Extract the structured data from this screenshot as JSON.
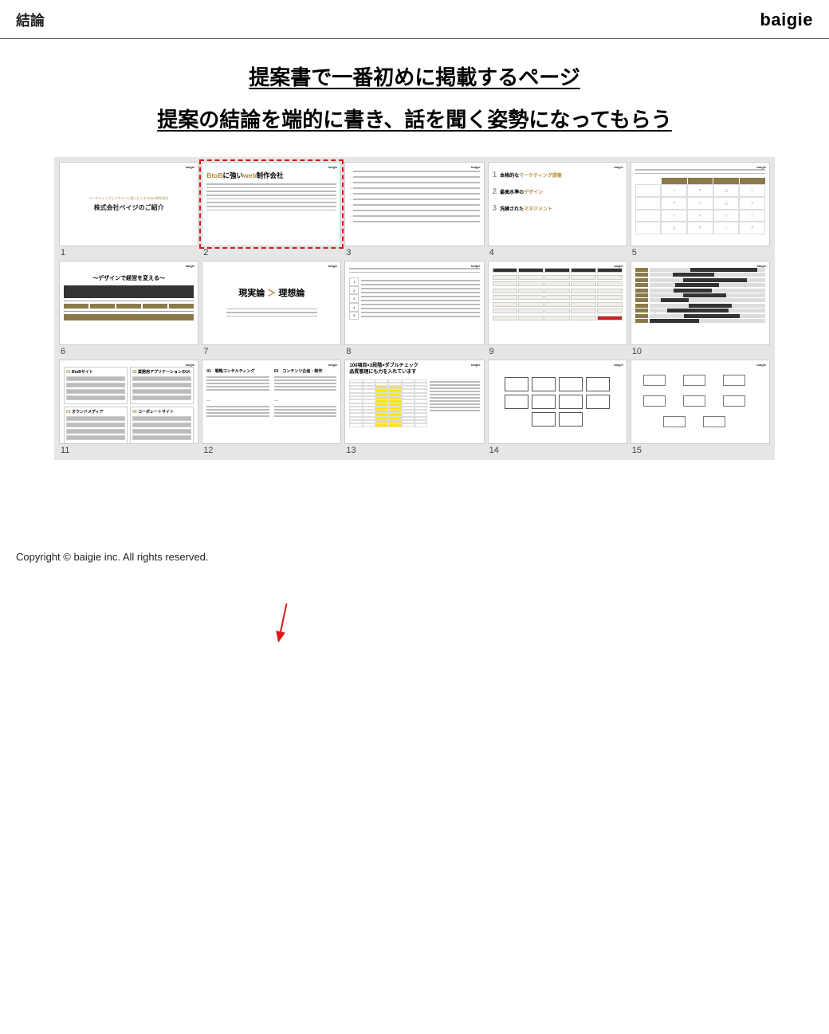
{
  "header": {
    "title": "結論",
    "logo": "baigie"
  },
  "headline1": "提案書で一番初めに掲載するページ",
  "headline2": "提案の結論を端的に書き、話を聞く姿勢になってもらう",
  "highlight": {
    "target_slide_index": 1,
    "border_color": "#d91818",
    "border_style": "dashed"
  },
  "arrow": {
    "color": "#d91818",
    "from": "headline",
    "to_slide_index": 1
  },
  "grid": {
    "background": "#e6e6e6",
    "columns": 5,
    "rows": 3,
    "thumb_bg": "#ffffff"
  },
  "slides": [
    {
      "num": "1",
      "type": "title",
      "subtitle": "マーケティングとデザインに強いビジネスWeb制作会社",
      "title": "株式会社ベイジのご紹介"
    },
    {
      "num": "2",
      "type": "conclusion",
      "title_pre": "BtoB",
      "title_mid": "に強い",
      "title_post": "web制作会社",
      "bullet_count": 8
    },
    {
      "num": "3",
      "type": "list",
      "row_count": 10
    },
    {
      "num": "4",
      "type": "threepoints",
      "items": [
        {
          "n": "1",
          "label_a": "本格的な",
          "label_b": "マーケティング提案"
        },
        {
          "n": "2",
          "label_a": "最高水準の",
          "label_b": "デザイン"
        },
        {
          "n": "3",
          "label_a": "洗練された",
          "label_b": "マネジメント"
        }
      ]
    },
    {
      "num": "5",
      "type": "matrix",
      "cols": 5,
      "rows": 4,
      "marks": [
        [
          "",
          "○",
          "×",
          "△",
          "○"
        ],
        [
          "",
          "×",
          "○",
          "△",
          "×"
        ],
        [
          "",
          "○",
          "×",
          "○",
          "○"
        ],
        [
          "",
          "△",
          "×",
          "○",
          "×"
        ]
      ]
    },
    {
      "num": "6",
      "type": "design",
      "title": "～デザインで経営を変える～"
    },
    {
      "num": "7",
      "type": "vs",
      "left": "現実論",
      "gt": "＞",
      "right": "理想論"
    },
    {
      "num": "8",
      "type": "numbered_list",
      "count": 5
    },
    {
      "num": "9",
      "type": "button_grid"
    },
    {
      "num": "10",
      "type": "gantt",
      "row_count": 11
    },
    {
      "num": "11",
      "type": "quadrant",
      "cells": [
        {
          "h_a": "01",
          "h_b": "BtoBサイト"
        },
        {
          "h_a": "02",
          "h_b": "業務用アプリケーションのUI"
        },
        {
          "h_a": "03",
          "h_b": "オウンドメディア"
        },
        {
          "h_a": "04",
          "h_b": "コーポレートサイト"
        }
      ]
    },
    {
      "num": "12",
      "type": "twocols",
      "cols": [
        {
          "h": "01　戦略コンサルティング"
        },
        {
          "h": "02　コンテンツ企画・制作"
        }
      ]
    },
    {
      "num": "13",
      "type": "check",
      "title": "100項目×3段階×ダブルチェック\n品質管理にも力を入れています"
    },
    {
      "num": "14",
      "type": "boxes",
      "count": 10
    },
    {
      "num": "15",
      "type": "flowchart"
    }
  ],
  "footer": "Copyright © baigie inc. All rights reserved.",
  "colors": {
    "accent": "#b48a3a",
    "text": "#222222",
    "grid_bg": "#e6e6e6",
    "highlight": "#d91818"
  }
}
